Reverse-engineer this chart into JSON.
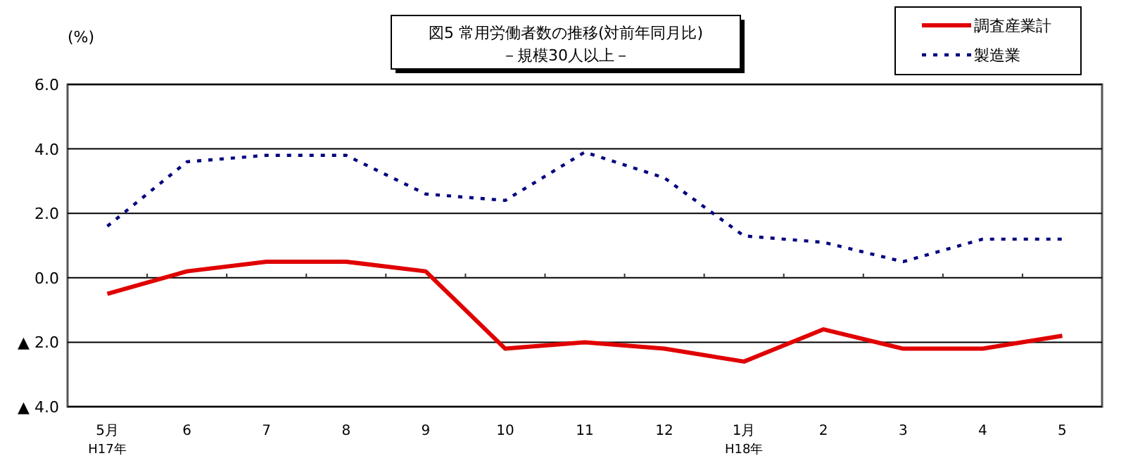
{
  "chart_data": {
    "type": "line",
    "title": "図5  常用労働者数の推移(対前年同月比)",
    "subtitle": "－規模30人以上－",
    "ylabel": "(%)",
    "categories": [
      "5月\nH17年",
      "6",
      "7",
      "8",
      "9",
      "10",
      "11",
      "12",
      "1月\nH18年",
      "2",
      "3",
      "4",
      "5"
    ],
    "series": [
      {
        "name": "調査産業計",
        "color": "#e00000",
        "line_style": "solid",
        "values": [
          -0.5,
          0.2,
          0.5,
          0.5,
          0.2,
          -2.2,
          -2.0,
          -2.2,
          -2.6,
          -1.6,
          -2.2,
          -2.2,
          -1.8
        ]
      },
      {
        "name": "製造業",
        "color": "#000080",
        "line_style": "dotted",
        "values": [
          1.6,
          3.6,
          3.8,
          3.8,
          2.6,
          2.4,
          3.9,
          3.1,
          1.3,
          1.1,
          0.5,
          1.2,
          1.2
        ]
      }
    ],
    "ylim": [
      -4,
      6
    ],
    "yticks": [
      {
        "value": 6,
        "label": "6.0"
      },
      {
        "value": 4,
        "label": "4.0"
      },
      {
        "value": 2,
        "label": "2.0"
      },
      {
        "value": 0,
        "label": "0.0"
      },
      {
        "value": -2,
        "label": "▲ 2.0"
      },
      {
        "value": -4,
        "label": "▲ 4.0"
      }
    ],
    "grid": "y",
    "legend": "top right",
    "marker": "none"
  }
}
